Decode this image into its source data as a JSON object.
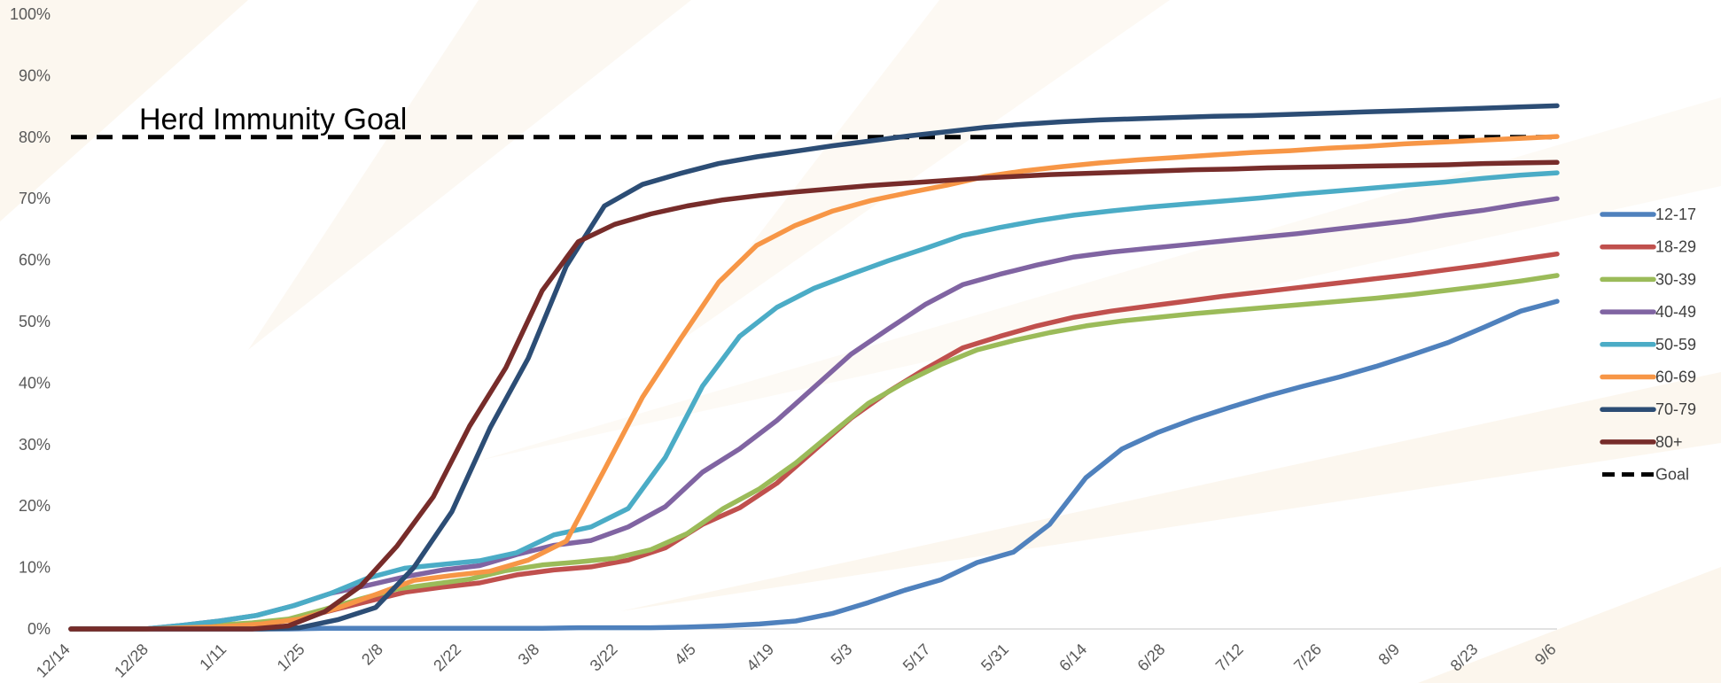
{
  "chart_data": {
    "type": "line",
    "title": "",
    "xlabel": "",
    "ylabel": "",
    "ylim": [
      0,
      100
    ],
    "y_ticks": [
      "0%",
      "10%",
      "20%",
      "30%",
      "40%",
      "50%",
      "60%",
      "70%",
      "80%",
      "90%",
      "100%"
    ],
    "x_tick_labels": [
      "12/14",
      "12/28",
      "1/11",
      "1/25",
      "2/8",
      "2/22",
      "3/8",
      "3/22",
      "4/5",
      "4/19",
      "5/3",
      "5/17",
      "5/31",
      "6/14",
      "6/28",
      "7/12",
      "7/26",
      "8/9",
      "8/23",
      "9/6"
    ],
    "grid": false,
    "legend_position": "right",
    "goal": {
      "name": "Goal",
      "value": 80,
      "label": "Herd Immunity Goal",
      "color": "#000000"
    },
    "series": [
      {
        "name": "12-17",
        "color": "#4F81BD",
        "values": [
          0,
          0,
          0,
          0,
          0,
          0,
          0,
          0.1,
          0.1,
          0.1,
          0.1,
          0.1,
          0.1,
          0.1,
          0.2,
          0.2,
          0.2,
          0.3,
          0.5,
          0.8,
          1.3,
          2.5,
          4.3,
          6.3,
          8.0,
          10.8,
          12.5,
          17.0,
          24.6,
          29.3,
          32.0,
          34.2,
          36.1,
          37.9,
          39.5,
          41.0,
          42.7,
          44.6,
          46.6,
          49.1,
          51.7,
          53.3
        ]
      },
      {
        "name": "18-29",
        "color": "#C0504D",
        "values": [
          0,
          0,
          0,
          0.3,
          0.6,
          1.0,
          1.5,
          3.0,
          4.5,
          6.0,
          6.8,
          7.5,
          8.8,
          9.6,
          10.1,
          11.2,
          13.2,
          17.0,
          19.7,
          23.7,
          29.0,
          34.3,
          38.6,
          42.3,
          45.7,
          47.6,
          49.3,
          50.7,
          51.7,
          52.5,
          53.3,
          54.1,
          54.8,
          55.5,
          56.2,
          56.9,
          57.6,
          58.4,
          59.2,
          60.1,
          61.0
        ]
      },
      {
        "name": "30-39",
        "color": "#9BBB59",
        "values": [
          0,
          0,
          0,
          0.3,
          0.6,
          1.0,
          1.6,
          3.2,
          4.9,
          6.5,
          7.3,
          8.1,
          9.5,
          10.4,
          10.9,
          11.5,
          12.9,
          15.5,
          19.6,
          22.8,
          27.0,
          31.9,
          36.7,
          40.1,
          43.0,
          45.4,
          46.9,
          48.2,
          49.3,
          50.1,
          50.7,
          51.3,
          51.8,
          52.3,
          52.8,
          53.3,
          53.8,
          54.4,
          55.1,
          55.8,
          56.6,
          57.5
        ]
      },
      {
        "name": "40-49",
        "color": "#8064A2",
        "values": [
          0,
          0,
          0,
          0.6,
          1.3,
          2.2,
          3.8,
          5.8,
          7.1,
          8.5,
          9.6,
          10.3,
          12.1,
          13.6,
          14.4,
          16.6,
          19.9,
          25.5,
          29.3,
          33.9,
          39.3,
          44.7,
          48.8,
          52.8,
          56.0,
          57.7,
          59.2,
          60.5,
          61.3,
          61.9,
          62.5,
          63.1,
          63.7,
          64.3,
          65.0,
          65.7,
          66.4,
          67.3,
          68.1,
          69.1,
          70.0
        ]
      },
      {
        "name": "50-59",
        "color": "#4BACC6",
        "values": [
          0,
          0,
          0,
          0.6,
          1.3,
          2.2,
          3.8,
          5.8,
          8.3,
          9.9,
          10.5,
          11.1,
          12.4,
          15.3,
          16.6,
          19.6,
          27.9,
          39.5,
          47.6,
          52.3,
          55.4,
          57.7,
          59.9,
          61.9,
          64.0,
          65.3,
          66.4,
          67.3,
          68.0,
          68.6,
          69.1,
          69.6,
          70.1,
          70.7,
          71.2,
          71.7,
          72.2,
          72.7,
          73.3,
          73.8,
          74.2
        ]
      },
      {
        "name": "60-69",
        "color": "#F79646",
        "values": [
          0,
          0,
          0,
          0.2,
          0.4,
          0.8,
          1.6,
          3.4,
          5.6,
          7.9,
          8.7,
          9.4,
          11.2,
          14.3,
          25.9,
          37.7,
          47.2,
          56.4,
          62.4,
          65.6,
          68.0,
          69.7,
          71.0,
          72.2,
          73.6,
          74.5,
          75.2,
          75.8,
          76.3,
          76.7,
          77.1,
          77.5,
          77.8,
          78.2,
          78.5,
          78.9,
          79.2,
          79.5,
          79.8,
          80.1
        ]
      },
      {
        "name": "70-79",
        "color": "#2C4D75",
        "values": [
          0,
          0,
          0,
          0,
          0,
          0,
          0.2,
          1.5,
          3.5,
          10.0,
          19.1,
          32.7,
          44.0,
          59.0,
          68.8,
          72.3,
          74.1,
          75.7,
          76.8,
          77.7,
          78.6,
          79.4,
          80.2,
          80.9,
          81.6,
          82.1,
          82.5,
          82.8,
          83.0,
          83.2,
          83.4,
          83.5,
          83.7,
          83.9,
          84.1,
          84.3,
          84.5,
          84.7,
          84.9,
          85.1
        ]
      },
      {
        "name": "80+",
        "color": "#772C2A",
        "values": [
          0,
          0,
          0,
          0,
          0,
          0,
          0.5,
          2.8,
          7.0,
          13.5,
          21.5,
          33.0,
          42.5,
          55.0,
          63.0,
          65.8,
          67.5,
          68.8,
          69.8,
          70.5,
          71.1,
          71.6,
          72.1,
          72.5,
          72.9,
          73.3,
          73.6,
          73.9,
          74.1,
          74.3,
          74.5,
          74.7,
          74.8,
          75.0,
          75.1,
          75.2,
          75.3,
          75.4,
          75.5,
          75.7,
          75.8,
          75.9
        ]
      }
    ]
  }
}
